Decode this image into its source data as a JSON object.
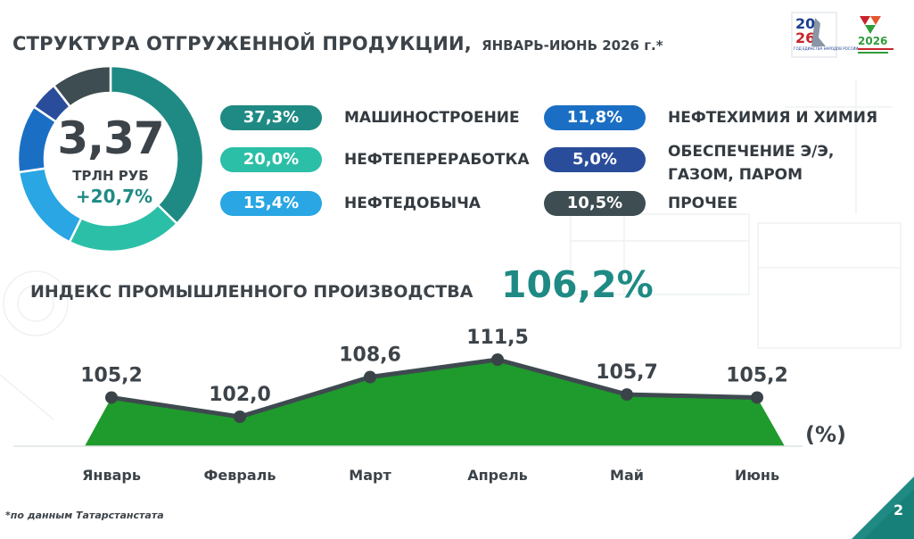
{
  "header": {
    "title_main": "СТРУКТУРА ОТГРУЖЕННОЙ ПРОДУКЦИИ,",
    "title_sub": "ЯНВАРЬ-ИЮНЬ 2026 г.*"
  },
  "logos": {
    "left_year_top": "20",
    "left_year_bottom": "26",
    "left_caption": "ГОД ЕДИНСТВА НАРОДОВ РОССИИ",
    "right_year": "2026"
  },
  "summary": {
    "value": "3,37",
    "unit": "ТРЛН РУБ",
    "growth": "+20,7%"
  },
  "index": {
    "title": "ИНДЕКС ПРОМЫШЛЕННОГО ПРОИЗВОДСТВА",
    "value": "106,2%"
  },
  "colors": {
    "teal": "#1f8a84",
    "mint": "#2bbfa7",
    "sky": "#29a6e3",
    "blue": "#1a6fc4",
    "navy": "#2a4d9b",
    "slate": "#3e4d51",
    "green": "#1f9a2c"
  },
  "chart_data": [
    {
      "type": "pie",
      "subtype": "donut",
      "slices": [
        {
          "label": "МАШИНОСТРОЕНИЕ",
          "value": 37.3,
          "value_label": "37,3%",
          "color": "#1f8a84"
        },
        {
          "label": "НЕФТЕПЕРЕРАБОТКА",
          "value": 20.0,
          "value_label": "20,0%",
          "color": "#2bbfa7"
        },
        {
          "label": "НЕФТЕДОБЫЧА",
          "value": 15.4,
          "value_label": "15,4%",
          "color": "#29a6e3"
        },
        {
          "label": "НЕФТЕХИМИЯ И ХИМИЯ",
          "value": 11.8,
          "value_label": "11,8%",
          "color": "#1a6fc4"
        },
        {
          "label": "ОБЕСПЕЧЕНИЕ Э/Э, ГАЗОМ, ПАРОМ",
          "value": 5.0,
          "value_label": "5,0%",
          "color": "#2a4d9b"
        },
        {
          "label": "ПРОЧЕЕ",
          "value": 10.5,
          "value_label": "10,5%",
          "color": "#3e4d51"
        }
      ]
    },
    {
      "type": "area",
      "categories": [
        "Январь",
        "Февраль",
        "Март",
        "Апрель",
        "Май",
        "Июнь"
      ],
      "values": [
        105.2,
        102.0,
        108.6,
        111.5,
        105.7,
        105.2
      ],
      "value_labels": [
        "105,2",
        "102,0",
        "108,6",
        "111,5",
        "105,7",
        "105,2"
      ],
      "unit": "(%)",
      "fill_color": "#1f9a2c",
      "line_color": "#3e4a4f"
    }
  ],
  "footnote": "*по данным Татарстанстата",
  "page_number": "2"
}
